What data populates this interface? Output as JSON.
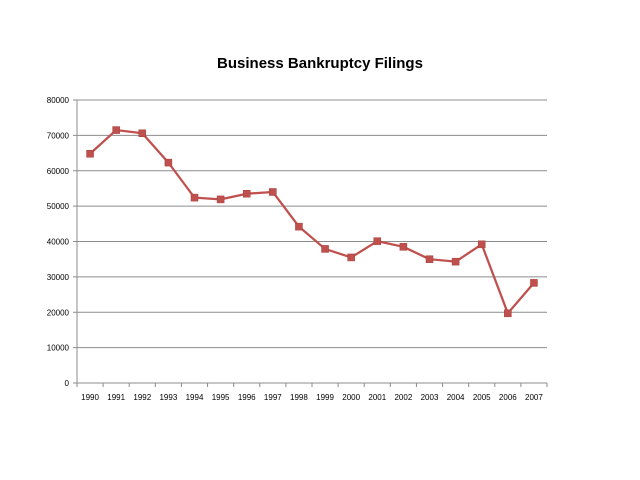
{
  "chart_data": {
    "type": "line",
    "title": "Business Bankruptcy Filings",
    "xlabel": "",
    "ylabel": "",
    "categories": [
      "1990",
      "1991",
      "1992",
      "1993",
      "1994",
      "1995",
      "1996",
      "1997",
      "1998",
      "1999",
      "2000",
      "2001",
      "2002",
      "2003",
      "2004",
      "2005",
      "2006",
      "2007"
    ],
    "series": [
      {
        "values": [
          64800,
          71500,
          70600,
          62300,
          52400,
          51900,
          53500,
          54000,
          44200,
          37900,
          35500,
          40100,
          38500,
          35000,
          34300,
          39200,
          19700,
          28300
        ]
      }
    ],
    "ylim": [
      0,
      80000
    ],
    "yticks": [
      "0",
      "10000",
      "20000",
      "30000",
      "40000",
      "50000",
      "60000",
      "70000",
      "80000"
    ],
    "grid": true,
    "legend": "none",
    "colors": {
      "line": "#c0504d",
      "marker": "#c0504d",
      "grid": "#8c8c8c",
      "axis": "#8c8c8c"
    }
  }
}
